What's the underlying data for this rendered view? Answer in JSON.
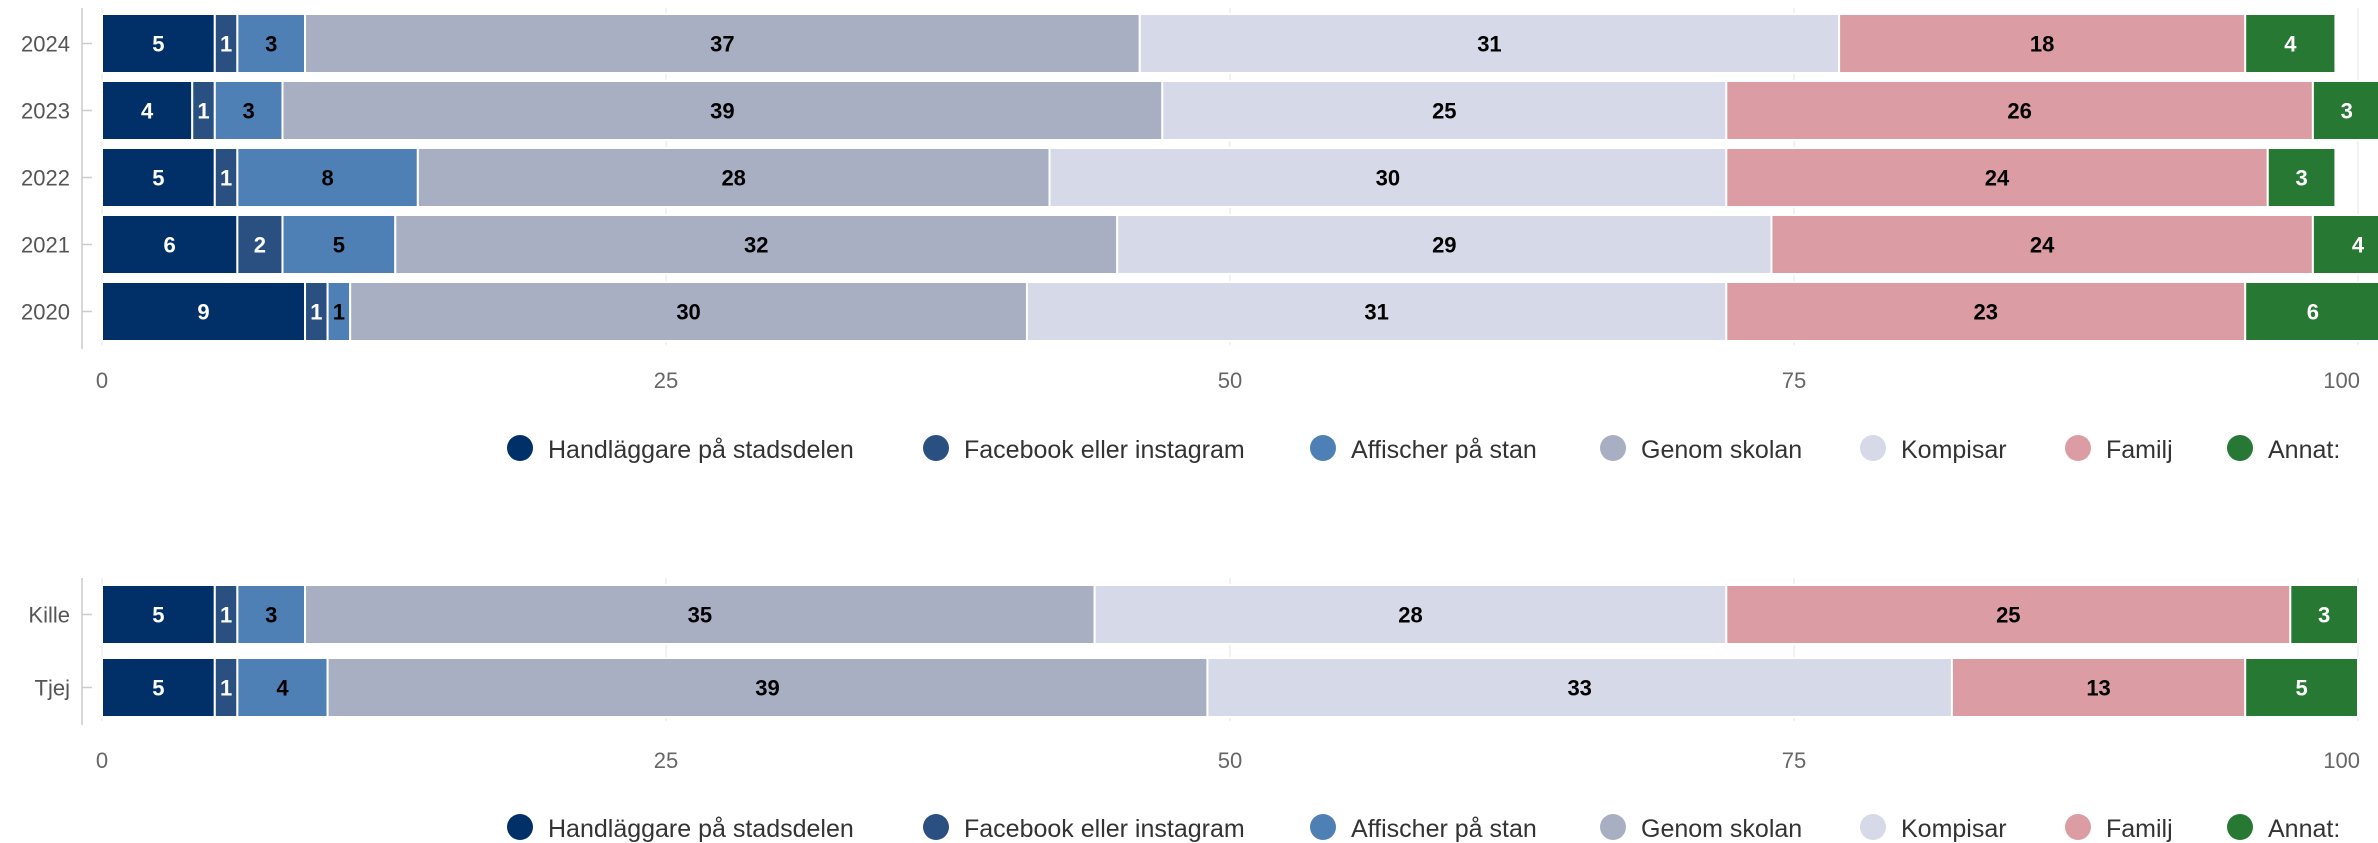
{
  "colors": [
    "#003067",
    "#2a4f81",
    "#4f80b5",
    "#a9afc3",
    "#d6d9e7",
    "#dc9ca3",
    "#267832"
  ],
  "legend": [
    "Handläggare på stadsdelen",
    "Facebook eller instagram",
    "Affischer på stan",
    "Genom skolan",
    "Kompisar",
    "Familj",
    "Annat:"
  ],
  "chart_data": [
    {
      "type": "bar",
      "orientation": "horizontal",
      "stacked": true,
      "categories": [
        "2024",
        "2023",
        "2022",
        "2021",
        "2020"
      ],
      "series": [
        {
          "name": "Handläggare på stadsdelen",
          "values": [
            5,
            4,
            5,
            6,
            9
          ]
        },
        {
          "name": "Facebook eller instagram",
          "values": [
            1,
            1,
            1,
            2,
            1
          ]
        },
        {
          "name": "Affischer på stan",
          "values": [
            3,
            3,
            8,
            5,
            1
          ]
        },
        {
          "name": "Genom skolan",
          "values": [
            37,
            39,
            28,
            32,
            30
          ]
        },
        {
          "name": "Kompisar",
          "values": [
            31,
            25,
            30,
            29,
            31
          ]
        },
        {
          "name": "Familj",
          "values": [
            18,
            26,
            24,
            24,
            23
          ]
        },
        {
          "name": "Annat:",
          "values": [
            4,
            3,
            3,
            4,
            6
          ]
        }
      ],
      "xlim": [
        0,
        100
      ],
      "xticks": [
        "0",
        "25",
        "50",
        "75",
        "100"
      ],
      "grid": true,
      "legend_position": "bottom"
    },
    {
      "type": "bar",
      "orientation": "horizontal",
      "stacked": true,
      "categories": [
        "Kille",
        "Tjej"
      ],
      "series": [
        {
          "name": "Handläggare på stadsdelen",
          "values": [
            5,
            5
          ]
        },
        {
          "name": "Facebook eller instagram",
          "values": [
            1,
            1
          ]
        },
        {
          "name": "Affischer på stan",
          "values": [
            3,
            4
          ]
        },
        {
          "name": "Genom skolan",
          "values": [
            35,
            39
          ]
        },
        {
          "name": "Kompisar",
          "values": [
            28,
            33
          ]
        },
        {
          "name": "Familj",
          "values": [
            25,
            13
          ]
        },
        {
          "name": "Annat:",
          "values": [
            3,
            5
          ]
        }
      ],
      "xlim": [
        0,
        100
      ],
      "xticks": [
        "0",
        "25",
        "50",
        "75",
        "100"
      ],
      "grid": true,
      "legend_position": "bottom"
    }
  ]
}
